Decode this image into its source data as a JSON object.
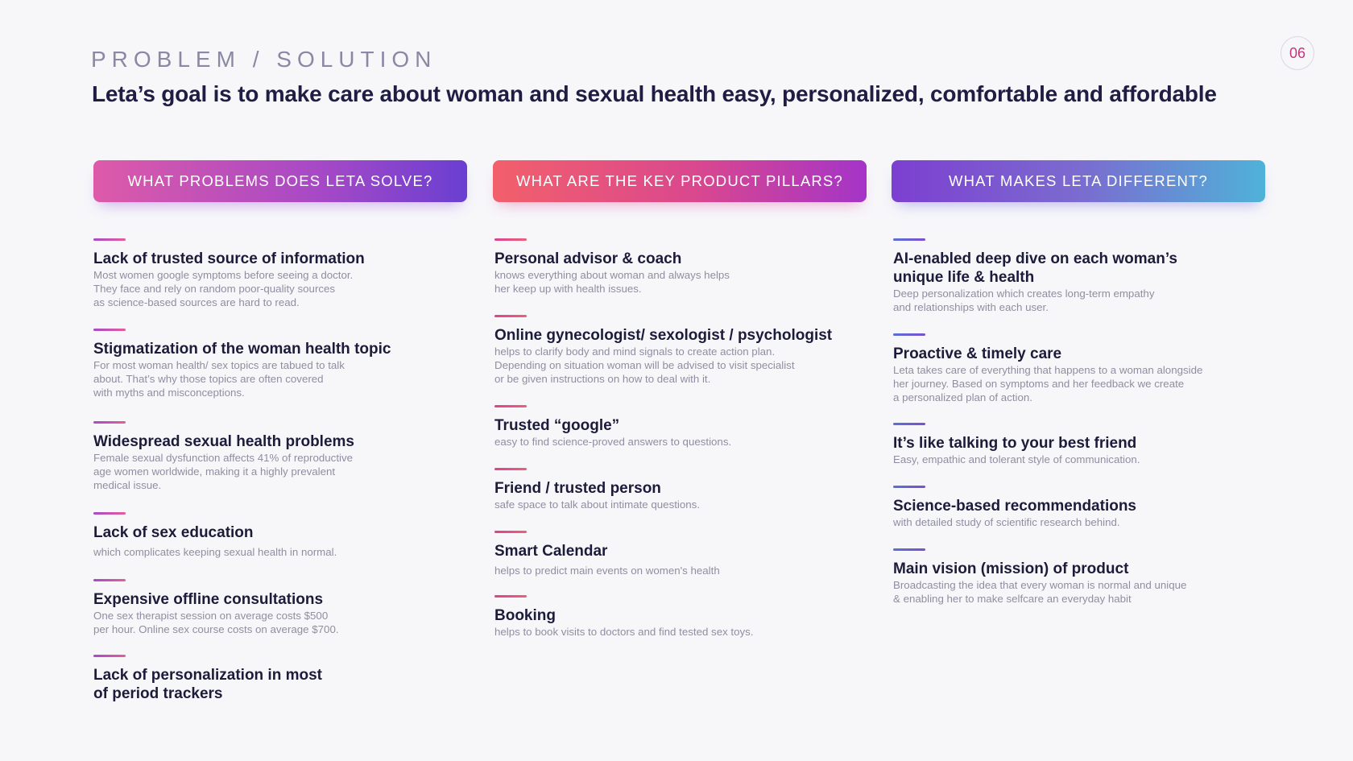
{
  "kicker": "PROBLEM / SOLUTION",
  "headline": "Leta’s goal is to make care about woman and sexual health easy, personalized, comfortable and affordable",
  "page_number": "06",
  "columns": [
    {
      "header": "WHAT PROBLEMS DOES LETA SOLVE?",
      "items": [
        {
          "title": "Lack of trusted source of information",
          "desc": "Most women google symptoms before seeing a doctor.\nThey face and rely on random poor-quality sources\nas science-based sources are hard to read."
        },
        {
          "title": "Stigmatization of the woman health topic",
          "desc": "For most woman health/ sex topics are tabued to talk\nabout. That’s why those topics are often covered\nwith myths and misconceptions."
        },
        {
          "title": "Widespread sexual health problems",
          "desc": "Female sexual dysfunction affects 41% of reproductive\nage women worldwide, making it a highly prevalent\nmedical issue."
        },
        {
          "title": "Lack of sex education",
          "desc": "which complicates keeping sexual health in normal."
        },
        {
          "title": "Expensive offline consultations",
          "desc": "One sex therapist session on average costs $500\nper hour. Online sex course costs on average $700."
        },
        {
          "title": "Lack of personalization in most\nof period trackers",
          "desc": ""
        }
      ]
    },
    {
      "header": "WHAT ARE THE KEY PRODUCT PILLARS?",
      "items": [
        {
          "title": "Personal advisor & coach",
          "desc": "knows everything about woman and always helps\nher  keep up with health issues."
        },
        {
          "title": "Online gynecologist/ sexologist / psychologist",
          "desc": "helps to clarify body and mind signals to create action plan.\nDepending on situation woman will be advised to visit specialist\nor be given instructions on how to deal with it."
        },
        {
          "title": "Trusted “google”",
          "desc": "easy to find science-proved answers to questions."
        },
        {
          "title": "Friend / trusted person",
          "desc": "safe space to talk about intimate questions."
        },
        {
          "title": "Smart Calendar",
          "desc": "helps to predict main events on women's health"
        },
        {
          "title": "Booking",
          "desc": "helps to book visits to doctors and find tested sex toys."
        }
      ]
    },
    {
      "header": "WHAT MAKES LETA DIFFERENT?",
      "items": [
        {
          "title": "AI-enabled deep dive on each woman’s\nunique life & health",
          "desc": "Deep personalization which creates long-term empathy\nand relationships with each user."
        },
        {
          "title": "Proactive & timely care",
          "desc": "Leta takes care of everything that happens to a  woman alongside\nher journey. Based on symptoms and her feedback we create\na personalized plan of action."
        },
        {
          "title": "It’s like talking to your best friend",
          "desc": "Easy, empathic and tolerant style of communication."
        },
        {
          "title": "Science-based recommendations",
          "desc": "with detailed study of scientific research behind."
        },
        {
          "title": "Main vision (mission) of product",
          "desc": "Broadcasting the idea that every woman is normal and unique\n& enabling her to make selfcare an everyday habit"
        }
      ]
    }
  ]
}
